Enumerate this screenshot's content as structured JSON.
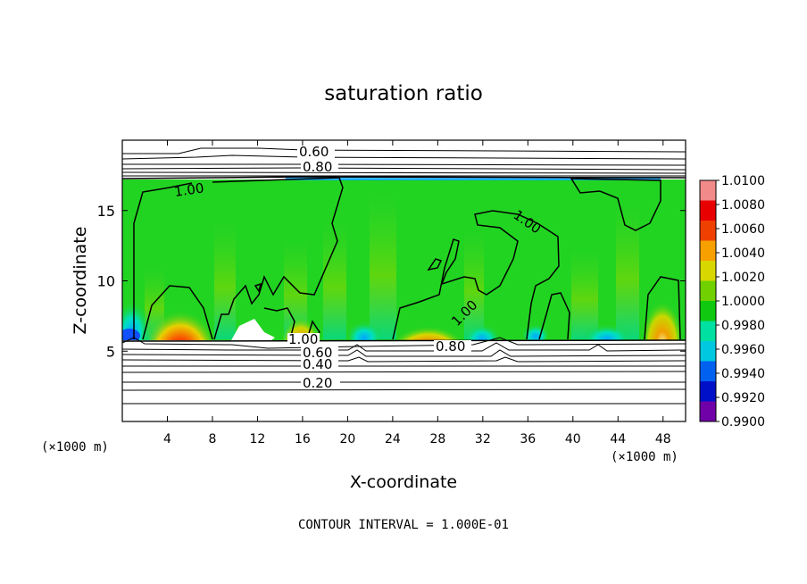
{
  "chart_data": {
    "type": "heatmap",
    "title": "saturation ratio",
    "xlabel": "X-coordinate",
    "ylabel": "Z-coordinate",
    "x_unit_label": "(×1000 m)",
    "xlim": [
      0,
      50
    ],
    "ylim": [
      0,
      20
    ],
    "x_ticks": [
      "4",
      "8",
      "12",
      "16",
      "20",
      "24",
      "28",
      "32",
      "36",
      "40",
      "44",
      "48"
    ],
    "y_ticks": [
      "5",
      "10",
      "15"
    ],
    "footer": "CONTOUR INTERVAL = 1.000E-01",
    "contour_labels": [
      "0.60",
      "0.80",
      "1.00",
      "1.00",
      "1.00",
      "1.00",
      "0.60",
      "0.40",
      "0.20",
      "0.80"
    ],
    "colorbar": {
      "labels": [
        "1.0100",
        "1.0080",
        "1.0060",
        "1.0040",
        "1.0020",
        "1.0000",
        "0.9980",
        "0.9960",
        "0.9940",
        "0.9920",
        "0.9900"
      ],
      "colors": [
        "#f28a8a",
        "#e80000",
        "#f04000",
        "#f8a000",
        "#d8d800",
        "#70d000",
        "#10c810",
        "#00e0a0",
        "#00c8e0",
        "#0060f0",
        "#0010c8",
        "#7000a8"
      ]
    },
    "colors": {
      "saturated": "#22d422",
      "subsaturated": "#00d8e0",
      "dry": "#1050ff",
      "supersaturated": "#e80000",
      "background": "#ffffff"
    }
  }
}
